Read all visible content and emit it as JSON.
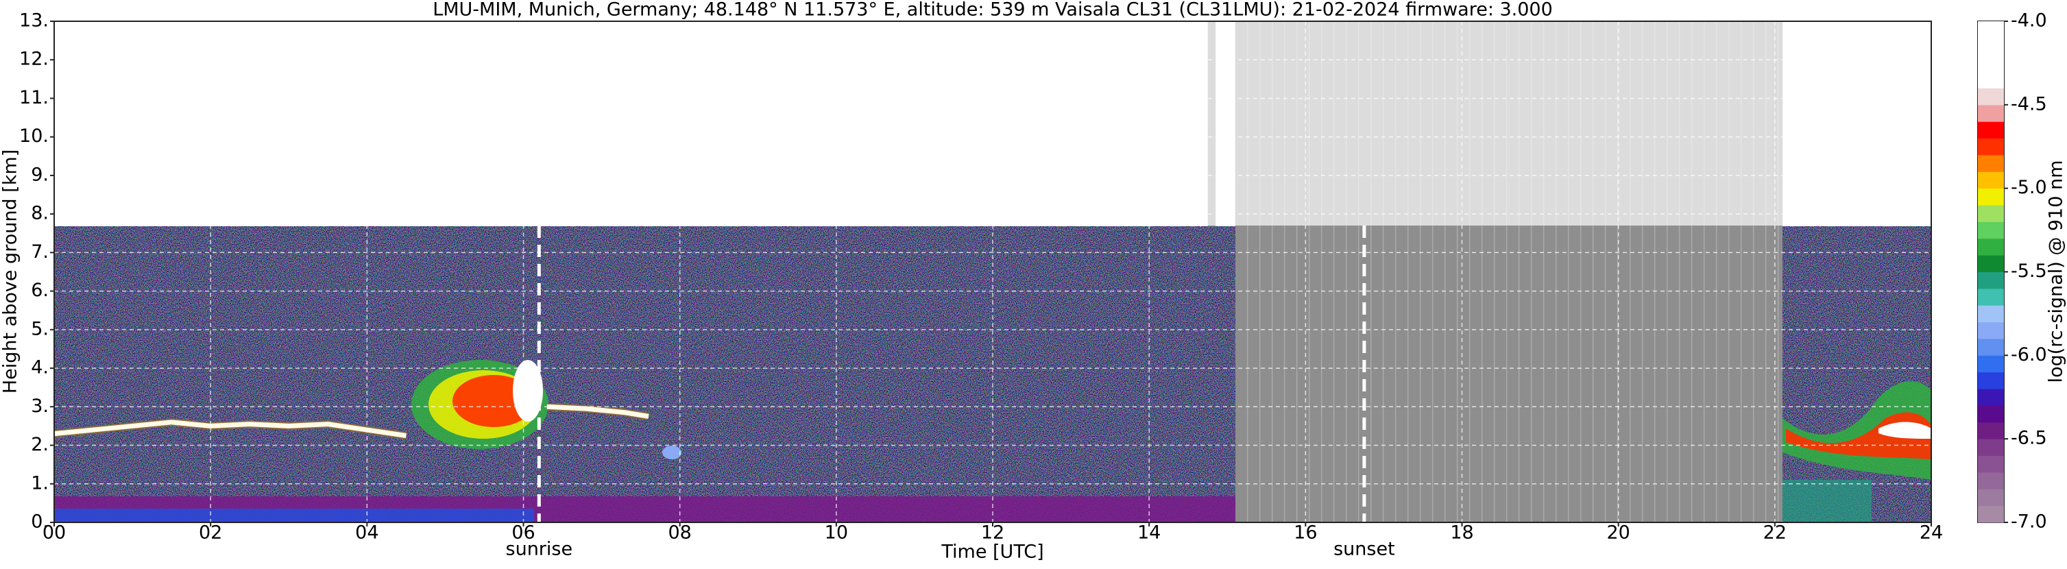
{
  "chart_data": {
    "type": "ceilometer",
    "title": "LMU-MIM, Munich, Germany; 48.148° N 11.573° E, altitude: 539 m    Vaisala CL31 (CL31LMU): 21-02-2024    firmware: 3.000",
    "x_label": "Time [UTC]",
    "y_label": "Height above ground [km]",
    "colorbar_label": "log(rc-signal) @ 910 nm",
    "xlim": [
      0,
      24
    ],
    "xticks": [
      {
        "value": 0,
        "label": "00"
      },
      {
        "value": 2,
        "label": "02"
      },
      {
        "value": 4,
        "label": "04"
      },
      {
        "value": 6,
        "label": "06"
      },
      {
        "value": 8,
        "label": "08"
      },
      10,
      12,
      14,
      16,
      18,
      20,
      22,
      24
    ],
    "ylim": [
      0,
      13
    ],
    "yticks": [
      {
        "value": 0,
        "label": "0."
      },
      {
        "value": 1,
        "label": "1."
      },
      {
        "value": 2,
        "label": "2."
      },
      {
        "value": 3,
        "label": "3."
      },
      {
        "value": 4,
        "label": "4."
      },
      {
        "value": 5,
        "label": "5."
      },
      {
        "value": 6,
        "label": "6."
      },
      {
        "value": 7,
        "label": "7."
      },
      {
        "value": 8,
        "label": "8."
      },
      {
        "value": 9,
        "label": "9."
      },
      {
        "value": 10,
        "label": "10."
      },
      {
        "value": 11,
        "label": "11."
      },
      {
        "value": 12,
        "label": "12."
      },
      {
        "value": 13,
        "label": "13."
      }
    ],
    "clim": [
      -7,
      -4
    ],
    "cticks": [
      {
        "value": -7,
        "label": "-7.0"
      },
      {
        "value": -6.5,
        "label": "-6.5"
      },
      {
        "value": -6,
        "label": "-6.0"
      },
      {
        "value": -5.5,
        "label": "-5.5"
      },
      {
        "value": -5,
        "label": "-5.0"
      },
      {
        "value": -4.5,
        "label": "-4.5"
      },
      {
        "value": -4,
        "label": "-4.0"
      }
    ],
    "colormap": [
      "#a68aa6",
      "#9d7ba0",
      "#94699a",
      "#8a5292",
      "#7e3c8a",
      "#6f1f84",
      "#5a0a8c",
      "#3a17b5",
      "#2840e0",
      "#3070f0",
      "#6090f0",
      "#8aaaf5",
      "#a0c4f5",
      "#40c0b0",
      "#20a080",
      "#108a30",
      "#30b040",
      "#60d060",
      "#a0e060",
      "#f0f000",
      "#ffc000",
      "#ff8000",
      "#ff3000",
      "#ff0000",
      "#f0a0a0",
      "#f0d8d8",
      "#ffffff",
      "#ffffff",
      "#ffffff",
      "#ffffff"
    ],
    "max_range": 7.7,
    "no_data": [
      [
        14.75,
        14.85
      ],
      [
        15.1,
        22.1
      ]
    ],
    "annotations": [
      {
        "text": "sunrise",
        "x": 6.2
      },
      {
        "text": "sunset",
        "x": 16.75
      }
    ],
    "x": [
      0,
      0.5,
      1,
      1.5,
      2,
      2.5,
      3,
      3.5,
      4,
      4.5,
      5,
      6.3,
      6.8,
      7.3,
      7.6
    ],
    "values": [
      2.3,
      2.4,
      2.5,
      2.6,
      2.5,
      2.55,
      2.5,
      2.55,
      2.4,
      2.25,
      null,
      3.0,
      2.95,
      2.85,
      2.75
    ],
    "color": "#fffbe6",
    "grid": true
  }
}
